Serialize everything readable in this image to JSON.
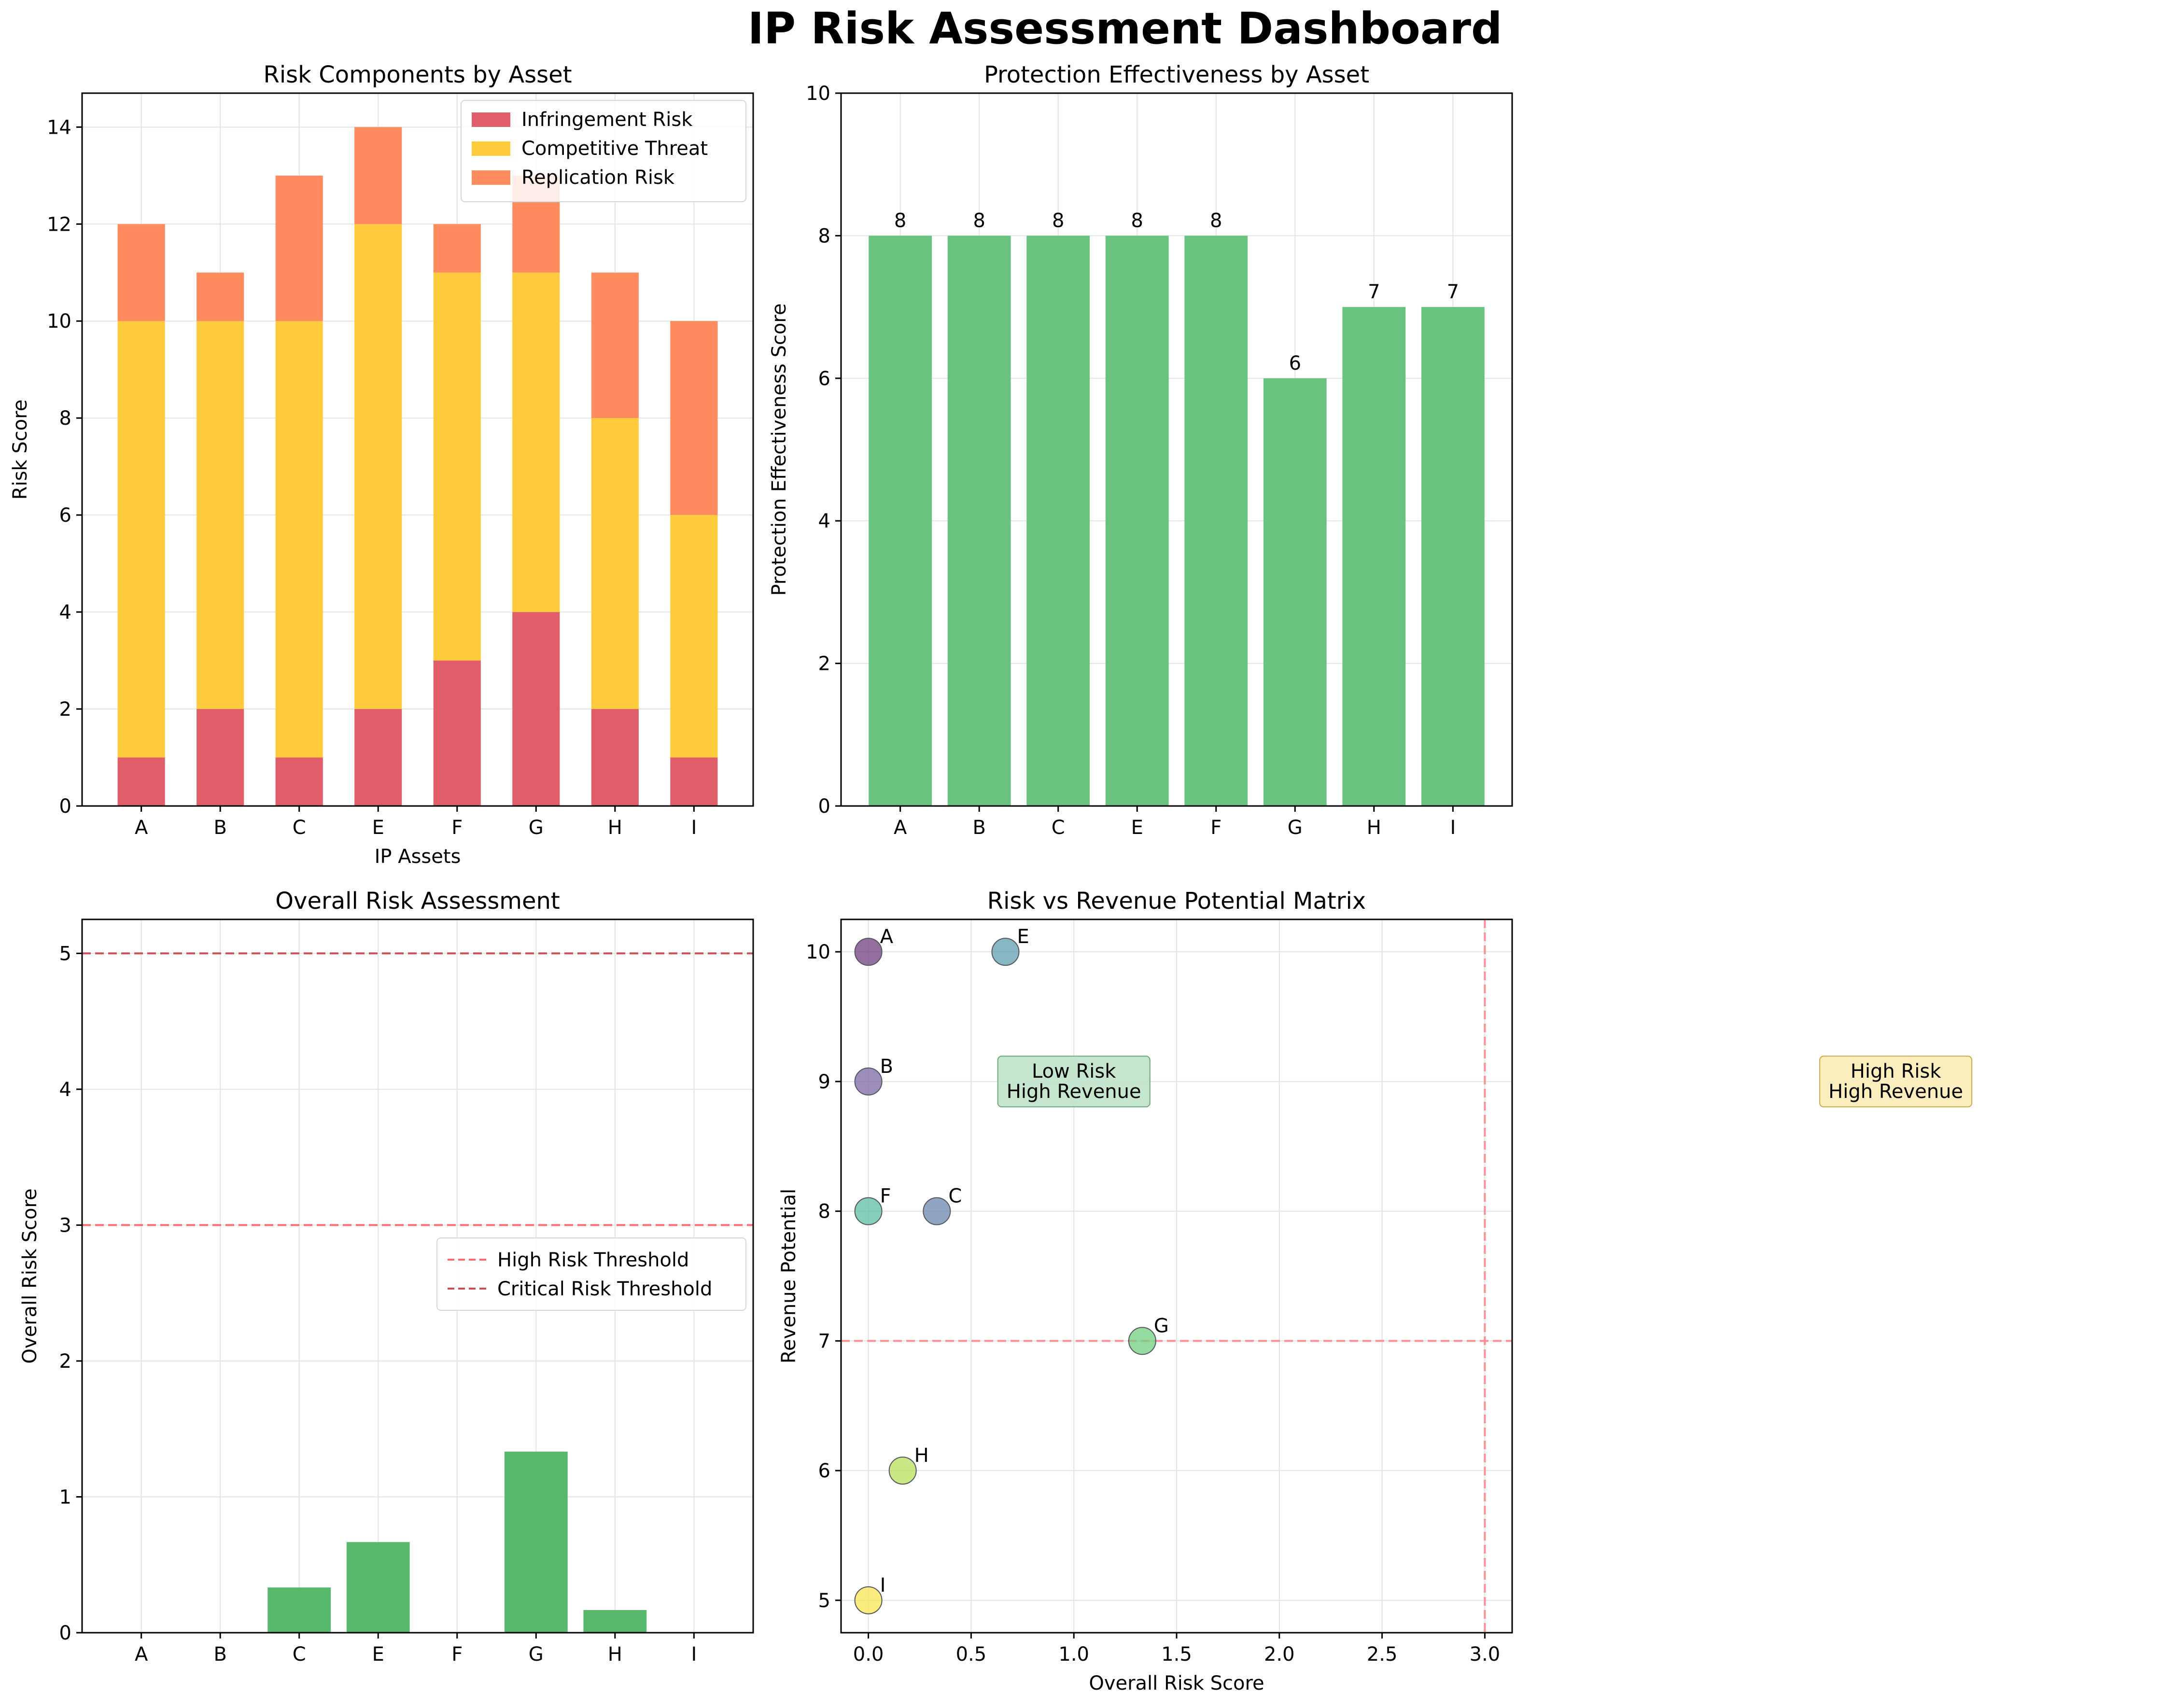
{
  "title": "IP Risk Assessment Dashboard",
  "chart_data": [
    {
      "type": "bar",
      "stacked": true,
      "title": "Risk Components by Asset",
      "xlabel": "IP Assets",
      "ylabel": "Risk Score",
      "categories": [
        "A",
        "B",
        "C",
        "E",
        "F",
        "G",
        "H",
        "I"
      ],
      "ylim": [
        0,
        14.7
      ],
      "yticks": [
        0,
        2,
        4,
        6,
        8,
        10,
        12,
        14
      ],
      "grid": true,
      "legend_position": "top-right",
      "series": [
        {
          "name": "Infringement Risk",
          "color": "#e05d6a",
          "values": [
            1,
            2,
            1,
            2,
            3,
            4,
            2,
            1
          ]
        },
        {
          "name": "Competitive Threat",
          "color": "#fdcb3c",
          "values": [
            9,
            8,
            9,
            10,
            8,
            7,
            6,
            5
          ]
        },
        {
          "name": "Replication Risk",
          "color": "#ff8b5e",
          "values": [
            2,
            1,
            3,
            2,
            1,
            2,
            3,
            4
          ]
        }
      ]
    },
    {
      "type": "bar",
      "title": "Protection Effectiveness by Asset",
      "xlabel": "",
      "ylabel": "Protection Effectiveness Score",
      "categories": [
        "A",
        "B",
        "C",
        "E",
        "F",
        "G",
        "H",
        "I"
      ],
      "values": [
        8,
        8,
        8,
        8,
        8,
        6,
        7,
        7
      ],
      "data_labels": [
        "8",
        "8",
        "8",
        "8",
        "8",
        "6",
        "7",
        "7"
      ],
      "color": "#6ac27f",
      "ylim": [
        0,
        10
      ],
      "yticks": [
        0,
        2,
        4,
        6,
        8,
        10
      ],
      "grid": true
    },
    {
      "type": "bar",
      "title": "Overall Risk Assessment",
      "xlabel": "",
      "ylabel": "Overall Risk Score",
      "categories": [
        "A",
        "B",
        "C",
        "E",
        "F",
        "G",
        "H",
        "I"
      ],
      "values": [
        0,
        0,
        0.333,
        0.667,
        0,
        1.333,
        0.167,
        0
      ],
      "color": "#57b86b",
      "ylim": [
        0,
        5.25
      ],
      "yticks": [
        0,
        1,
        2,
        3,
        4,
        5
      ],
      "grid": true,
      "legend_position": "center-right",
      "reference_lines": [
        {
          "name": "High Risk Threshold",
          "value": 3,
          "color": "#ff6b73"
        },
        {
          "name": "Critical Risk Threshold",
          "value": 5,
          "color": "#c9505a"
        }
      ]
    },
    {
      "type": "scatter",
      "title": "Risk vs Revenue Potential Matrix",
      "xlabel": "Overall Risk Score",
      "ylabel": "Revenue Potential",
      "xlim": [
        -0.133,
        3.133
      ],
      "ylim": [
        4.75,
        10.25
      ],
      "xticks": [
        "0.0",
        "0.5",
        "1.0",
        "1.5",
        "2.0",
        "2.5",
        "3.0"
      ],
      "yticks": [
        5,
        6,
        7,
        8,
        9,
        10
      ],
      "grid": true,
      "points": [
        {
          "label": "A",
          "x": 0,
          "y": 10,
          "color": "#6f3f7f"
        },
        {
          "label": "E",
          "x": 0.667,
          "y": 10,
          "color": "#5d9fad"
        },
        {
          "label": "B",
          "x": 0,
          "y": 9,
          "color": "#7b67a6"
        },
        {
          "label": "F",
          "x": 0,
          "y": 8,
          "color": "#5cbfa3"
        },
        {
          "label": "C",
          "x": 0.333,
          "y": 8,
          "color": "#6a87ad"
        },
        {
          "label": "G",
          "x": 1.333,
          "y": 7,
          "color": "#6fcf7f"
        },
        {
          "label": "H",
          "x": 0.167,
          "y": 6,
          "color": "#b7e05a"
        },
        {
          "label": "I",
          "x": 0,
          "y": 5,
          "color": "#f8e552"
        }
      ],
      "reference_lines": [
        {
          "axis": "x",
          "value": 3,
          "color": "#ff8f95"
        },
        {
          "axis": "y",
          "value": 7,
          "color": "#ff8f95"
        }
      ],
      "quadrant_annotations": [
        {
          "lines": [
            "Low Risk",
            "High Revenue"
          ],
          "x": 1,
          "y": 9,
          "fill": "#bfe3c7",
          "border": "#6aa77a"
        },
        {
          "lines": [
            "High Risk",
            "High Revenue"
          ],
          "x": 5,
          "y": 9,
          "fill": "#fcebb5",
          "border": "#caa94a"
        }
      ]
    }
  ]
}
